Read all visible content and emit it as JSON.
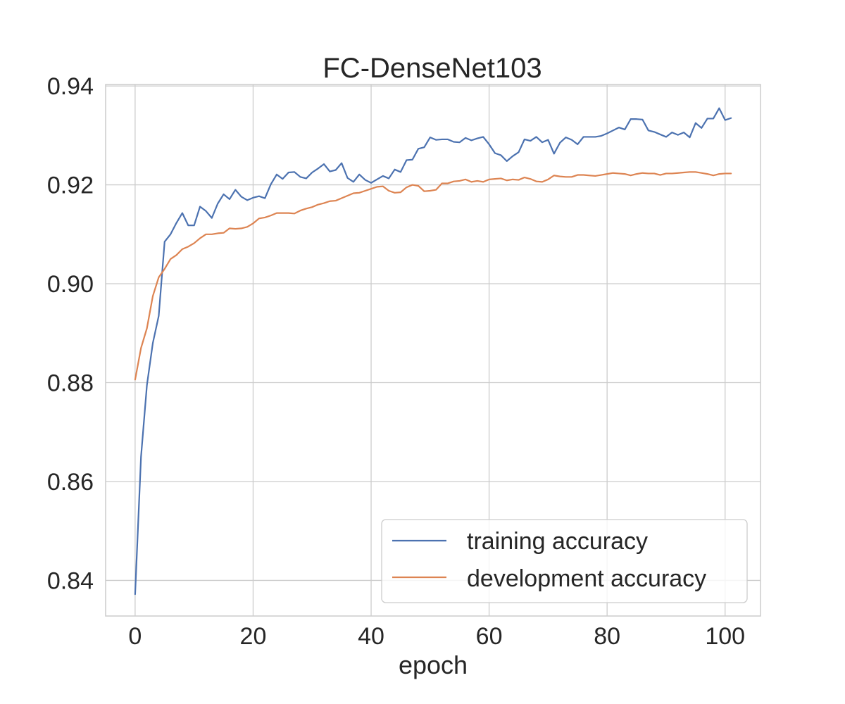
{
  "chart_data": {
    "type": "line",
    "title": "FC-DenseNet103",
    "xlabel": "epoch",
    "ylabel": "",
    "xlim": [
      -5,
      106
    ],
    "ylim": [
      0.8328,
      0.9403
    ],
    "xticks": [
      0,
      20,
      40,
      60,
      80,
      100
    ],
    "yticks": [
      0.84,
      0.86,
      0.88,
      0.9,
      0.92,
      0.94
    ],
    "ytick_labels": [
      "0.84",
      "0.86",
      "0.88",
      "0.90",
      "0.92",
      "0.94"
    ],
    "grid": true,
    "legend_position": "lower-right",
    "series": [
      {
        "name": "training accuracy",
        "color": "#4c72b0",
        "x": [
          0,
          1,
          2,
          3,
          4,
          5,
          6,
          7,
          8,
          9,
          10,
          11,
          12,
          13,
          14,
          15,
          16,
          17,
          18,
          19,
          20,
          21,
          22,
          23,
          24,
          25,
          26,
          27,
          28,
          29,
          30,
          31,
          32,
          33,
          34,
          35,
          36,
          37,
          38,
          39,
          40,
          41,
          42,
          43,
          44,
          45,
          46,
          47,
          48,
          49,
          50,
          51,
          52,
          53,
          54,
          55,
          56,
          57,
          58,
          59,
          60,
          61,
          62,
          63,
          64,
          65,
          66,
          67,
          68,
          69,
          70,
          71,
          72,
          73,
          74,
          75,
          76,
          77,
          78,
          79,
          80,
          81,
          82,
          83,
          84,
          85,
          86,
          87,
          88,
          89,
          90,
          91,
          92,
          93,
          94,
          95,
          96,
          97,
          98,
          99,
          100,
          101
        ],
        "values": [
          0.8372,
          0.865,
          0.8795,
          0.888,
          0.8935,
          0.9085,
          0.91,
          0.9123,
          0.9143,
          0.9118,
          0.9118,
          0.9156,
          0.9147,
          0.9133,
          0.9162,
          0.9181,
          0.9171,
          0.919,
          0.9176,
          0.9169,
          0.9174,
          0.9177,
          0.9173,
          0.9201,
          0.9221,
          0.9212,
          0.9225,
          0.9226,
          0.9216,
          0.9213,
          0.9225,
          0.9233,
          0.9242,
          0.9227,
          0.923,
          0.9244,
          0.9214,
          0.9206,
          0.9221,
          0.921,
          0.9204,
          0.9211,
          0.9218,
          0.9213,
          0.9231,
          0.9226,
          0.925,
          0.9251,
          0.9273,
          0.9276,
          0.9296,
          0.9291,
          0.9292,
          0.9292,
          0.9287,
          0.9286,
          0.9295,
          0.929,
          0.9294,
          0.9297,
          0.9282,
          0.9264,
          0.926,
          0.9248,
          0.9258,
          0.9266,
          0.9292,
          0.9289,
          0.9297,
          0.9286,
          0.9291,
          0.9263,
          0.9285,
          0.9296,
          0.9291,
          0.9282,
          0.9297,
          0.9297,
          0.9297,
          0.9299,
          0.9304,
          0.931,
          0.9316,
          0.9312,
          0.9333,
          0.9333,
          0.9332,
          0.931,
          0.9307,
          0.9302,
          0.9297,
          0.9306,
          0.9301,
          0.9306,
          0.9296,
          0.9325,
          0.9315,
          0.9334,
          0.9334,
          0.9355,
          0.9331,
          0.9335
        ]
      },
      {
        "name": "development accuracy",
        "color": "#dd8452",
        "x": [
          0,
          1,
          2,
          3,
          4,
          5,
          6,
          7,
          8,
          9,
          10,
          11,
          12,
          13,
          14,
          15,
          16,
          17,
          18,
          19,
          20,
          21,
          22,
          23,
          24,
          25,
          26,
          27,
          28,
          29,
          30,
          31,
          32,
          33,
          34,
          35,
          36,
          37,
          38,
          39,
          40,
          41,
          42,
          43,
          44,
          45,
          46,
          47,
          48,
          49,
          50,
          51,
          52,
          53,
          54,
          55,
          56,
          57,
          58,
          59,
          60,
          61,
          62,
          63,
          64,
          65,
          66,
          67,
          68,
          69,
          70,
          71,
          72,
          73,
          74,
          75,
          76,
          77,
          78,
          79,
          80,
          81,
          82,
          83,
          84,
          85,
          86,
          87,
          88,
          89,
          90,
          91,
          92,
          93,
          94,
          95,
          96,
          97,
          98,
          99,
          100,
          101
        ],
        "values": [
          0.8806,
          0.887,
          0.891,
          0.8975,
          0.9013,
          0.903,
          0.905,
          0.9058,
          0.907,
          0.9075,
          0.9082,
          0.9092,
          0.91,
          0.91,
          0.9102,
          0.9103,
          0.9112,
          0.9111,
          0.9112,
          0.9115,
          0.9122,
          0.9132,
          0.9134,
          0.9138,
          0.9143,
          0.9143,
          0.9143,
          0.9142,
          0.9148,
          0.9152,
          0.9155,
          0.916,
          0.9163,
          0.9167,
          0.9168,
          0.9173,
          0.9178,
          0.9183,
          0.9184,
          0.9188,
          0.9192,
          0.9196,
          0.9197,
          0.9188,
          0.9184,
          0.9185,
          0.9195,
          0.92,
          0.9198,
          0.9187,
          0.9188,
          0.919,
          0.9203,
          0.9203,
          0.9207,
          0.9208,
          0.9211,
          0.9206,
          0.9208,
          0.9206,
          0.9211,
          0.9212,
          0.9213,
          0.9209,
          0.9211,
          0.921,
          0.9215,
          0.9212,
          0.9207,
          0.9206,
          0.9211,
          0.9219,
          0.9217,
          0.9216,
          0.9216,
          0.922,
          0.922,
          0.9219,
          0.9218,
          0.922,
          0.9222,
          0.9224,
          0.9223,
          0.9222,
          0.9219,
          0.9222,
          0.9224,
          0.9223,
          0.9223,
          0.922,
          0.9223,
          0.9223,
          0.9224,
          0.9225,
          0.9226,
          0.9226,
          0.9224,
          0.9222,
          0.9219,
          0.9222,
          0.9223,
          0.9223
        ]
      }
    ]
  }
}
